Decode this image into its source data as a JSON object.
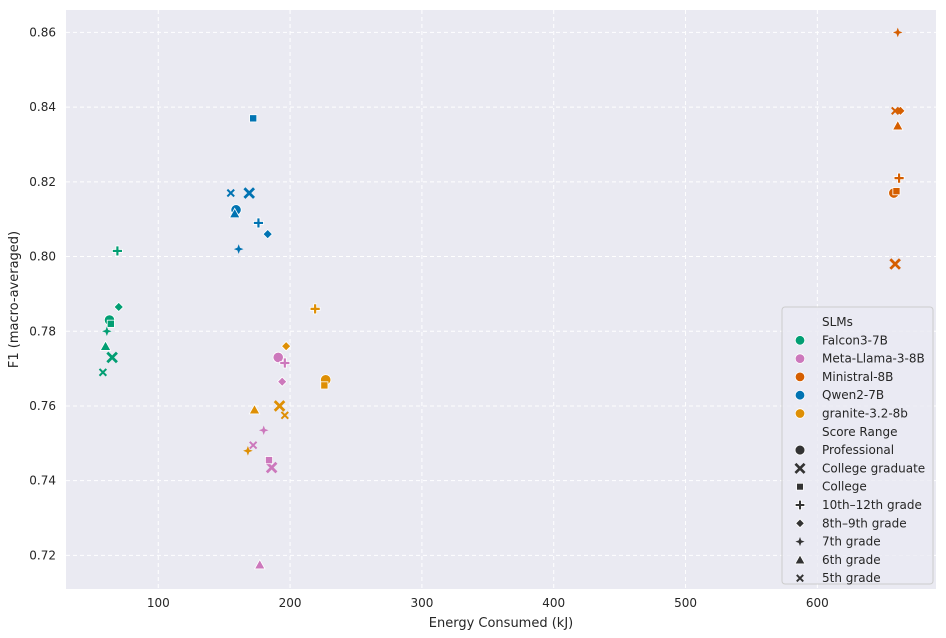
{
  "chart_data": {
    "type": "scatter",
    "xlabel": "Energy Consumed (kJ)",
    "ylabel": "F1 (macro-averaged)",
    "xlim": [
      30,
      690
    ],
    "ylim": [
      0.711,
      0.866
    ],
    "xticks": [
      100,
      200,
      300,
      400,
      500,
      600
    ],
    "yticks": [
      0.72,
      0.74,
      0.76,
      0.78,
      0.8,
      0.82,
      0.84,
      0.86
    ],
    "xtick_labels": [
      "100",
      "200",
      "300",
      "400",
      "500",
      "600"
    ],
    "ytick_labels": [
      "0.72",
      "0.74",
      "0.76",
      "0.78",
      "0.80",
      "0.82",
      "0.84",
      "0.86"
    ],
    "grid": true,
    "legend_placement": "lower-right",
    "hue_title": "SLMs",
    "style_title": "Score Range",
    "score_ranges": [
      {
        "name": "Professional",
        "marker": "circle"
      },
      {
        "name": "College graduate",
        "marker": "x"
      },
      {
        "name": "College",
        "marker": "square"
      },
      {
        "name": "10th–12th grade",
        "marker": "plus"
      },
      {
        "name": "8th–9th grade",
        "marker": "diamond"
      },
      {
        "name": "7th grade",
        "marker": "star4"
      },
      {
        "name": "6th grade",
        "marker": "triangle"
      },
      {
        "name": "5th grade",
        "marker": "smallx"
      }
    ],
    "series": [
      {
        "name": "Falcon3-7B",
        "color": "#029e73",
        "points": [
          {
            "range": "Professional",
            "x": 63,
            "y": 0.783
          },
          {
            "range": "College graduate",
            "x": 65,
            "y": 0.773
          },
          {
            "range": "College",
            "x": 64,
            "y": 0.782
          },
          {
            "range": "10th–12th grade",
            "x": 69,
            "y": 0.8015
          },
          {
            "range": "8th–9th grade",
            "x": 70,
            "y": 0.7865
          },
          {
            "range": "7th grade",
            "x": 61,
            "y": 0.78
          },
          {
            "range": "6th grade",
            "x": 60,
            "y": 0.776
          },
          {
            "range": "5th grade",
            "x": 58,
            "y": 0.769
          }
        ]
      },
      {
        "name": "Meta-Llama-3-8B",
        "color": "#cc78bc",
        "points": [
          {
            "range": "Professional",
            "x": 191,
            "y": 0.773
          },
          {
            "range": "College graduate",
            "x": 186,
            "y": 0.7435
          },
          {
            "range": "College",
            "x": 184,
            "y": 0.7455
          },
          {
            "range": "10th–12th grade",
            "x": 196,
            "y": 0.7715
          },
          {
            "range": "8th–9th grade",
            "x": 194,
            "y": 0.7665
          },
          {
            "range": "7th grade",
            "x": 180,
            "y": 0.7535
          },
          {
            "range": "6th grade",
            "x": 177,
            "y": 0.7175
          },
          {
            "range": "5th grade",
            "x": 172,
            "y": 0.7495
          }
        ]
      },
      {
        "name": "Ministral-8B",
        "color": "#d55e00",
        "points": [
          {
            "range": "Professional",
            "x": 658,
            "y": 0.817
          },
          {
            "range": "College graduate",
            "x": 659,
            "y": 0.798
          },
          {
            "range": "College",
            "x": 660,
            "y": 0.8175
          },
          {
            "range": "10th–12th grade",
            "x": 662,
            "y": 0.821
          },
          {
            "range": "8th–9th grade",
            "x": 663,
            "y": 0.839
          },
          {
            "range": "7th grade",
            "x": 661,
            "y": 0.86
          },
          {
            "range": "6th grade",
            "x": 661,
            "y": 0.835
          },
          {
            "range": "5th grade",
            "x": 659,
            "y": 0.839
          }
        ]
      },
      {
        "name": "Qwen2-7B",
        "color": "#0173b2",
        "points": [
          {
            "range": "Professional",
            "x": 159,
            "y": 0.8125
          },
          {
            "range": "College graduate",
            "x": 169,
            "y": 0.817
          },
          {
            "range": "College",
            "x": 172,
            "y": 0.837
          },
          {
            "range": "10th–12th grade",
            "x": 176,
            "y": 0.809
          },
          {
            "range": "8th–9th grade",
            "x": 183,
            "y": 0.806
          },
          {
            "range": "7th grade",
            "x": 161,
            "y": 0.802
          },
          {
            "range": "6th grade",
            "x": 158,
            "y": 0.8115
          },
          {
            "range": "5th grade",
            "x": 155,
            "y": 0.817
          }
        ]
      },
      {
        "name": "granite-3.2-8b",
        "color": "#de8f05",
        "points": [
          {
            "range": "Professional",
            "x": 227,
            "y": 0.767
          },
          {
            "range": "College graduate",
            "x": 192,
            "y": 0.76
          },
          {
            "range": "College",
            "x": 226,
            "y": 0.7655
          },
          {
            "range": "10th–12th grade",
            "x": 219,
            "y": 0.786
          },
          {
            "range": "8th–9th grade",
            "x": 197,
            "y": 0.776
          },
          {
            "range": "7th grade",
            "x": 168,
            "y": 0.748
          },
          {
            "range": "6th grade",
            "x": 173,
            "y": 0.759
          },
          {
            "range": "5th grade",
            "x": 196,
            "y": 0.7575
          }
        ]
      }
    ]
  }
}
